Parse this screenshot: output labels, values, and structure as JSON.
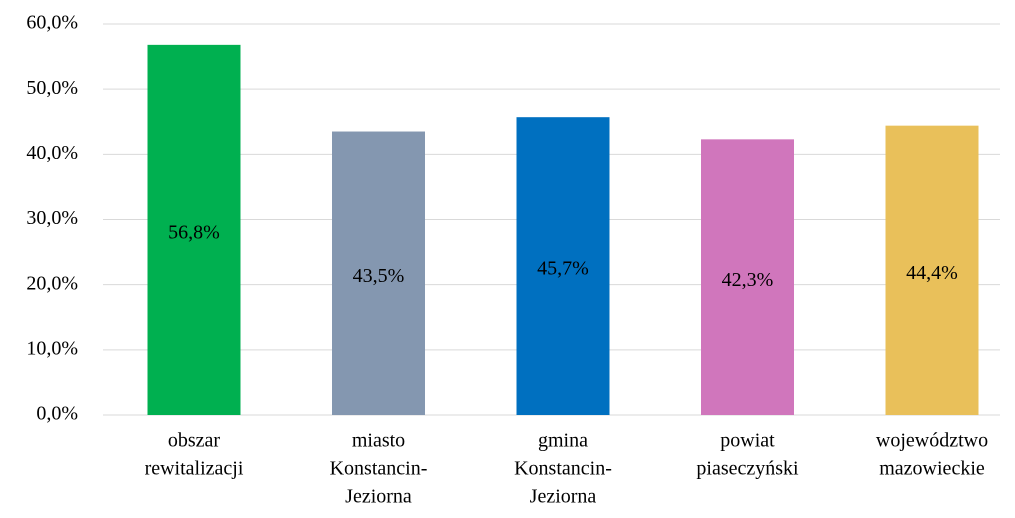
{
  "chart_data": {
    "type": "bar",
    "categories": [
      [
        "obszar",
        "rewitalizacji"
      ],
      [
        "miasto",
        "Konstancin-",
        "Jeziorna"
      ],
      [
        "gmina",
        "Konstancin-",
        "Jeziorna"
      ],
      [
        "powiat",
        "piaseczyński"
      ],
      [
        "województwo",
        "mazowieckie"
      ]
    ],
    "values": [
      56.8,
      43.5,
      45.7,
      42.3,
      44.4
    ],
    "value_labels": [
      "56,8%",
      "43,5%",
      "45,7%",
      "42,3%",
      "44,4%"
    ],
    "colors": [
      "#00b050",
      "#8497b0",
      "#0070c0",
      "#d076bc",
      "#e9c05a"
    ],
    "ylim": [
      0,
      60
    ],
    "yticks": [
      {
        "value": 0,
        "label": "0,0%"
      },
      {
        "value": 10,
        "label": "10,0%"
      },
      {
        "value": 20,
        "label": "20,0%"
      },
      {
        "value": 30,
        "label": "30,0%"
      },
      {
        "value": 40,
        "label": "40,0%"
      },
      {
        "value": 50,
        "label": "50,0%"
      },
      {
        "value": 60,
        "label": "60,0%"
      }
    ],
    "grid": true
  }
}
